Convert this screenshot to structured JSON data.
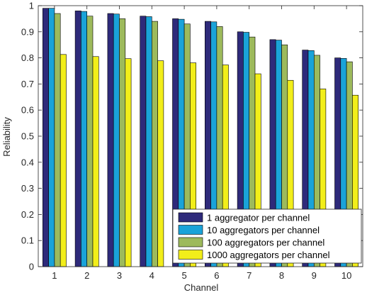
{
  "chart_data": {
    "type": "bar",
    "title": "",
    "xlabel": "Channel",
    "ylabel": "Reliability",
    "categories": [
      "1",
      "2",
      "3",
      "4",
      "5",
      "6",
      "7",
      "8",
      "9",
      "10"
    ],
    "ylim": [
      0,
      1
    ],
    "yticks": [
      "0",
      "0.1",
      "0.2",
      "0.3",
      "0.4",
      "0.5",
      "0.6",
      "0.7",
      "0.8",
      "0.9",
      "1"
    ],
    "grid": false,
    "legend_position": "bottom-right",
    "series": [
      {
        "name": "1 aggregator per channel",
        "color": "#2e2a7a",
        "values": [
          0.99,
          0.98,
          0.97,
          0.96,
          0.95,
          0.94,
          0.9,
          0.87,
          0.83,
          0.8
        ]
      },
      {
        "name": "10 aggregators per channel",
        "color": "#1aa3d9",
        "values": [
          0.99,
          0.978,
          0.968,
          0.958,
          0.948,
          0.938,
          0.898,
          0.868,
          0.828,
          0.798
        ]
      },
      {
        "name": "100 aggregators per channel",
        "color": "#9dba5c",
        "values": [
          0.97,
          0.96,
          0.95,
          0.94,
          0.93,
          0.92,
          0.88,
          0.85,
          0.81,
          0.785
        ]
      },
      {
        "name": "1000 aggregators per channel",
        "color": "#f2ee1a",
        "values": [
          0.813,
          0.805,
          0.797,
          0.789,
          0.781,
          0.773,
          0.739,
          0.714,
          0.681,
          0.657
        ]
      }
    ]
  }
}
